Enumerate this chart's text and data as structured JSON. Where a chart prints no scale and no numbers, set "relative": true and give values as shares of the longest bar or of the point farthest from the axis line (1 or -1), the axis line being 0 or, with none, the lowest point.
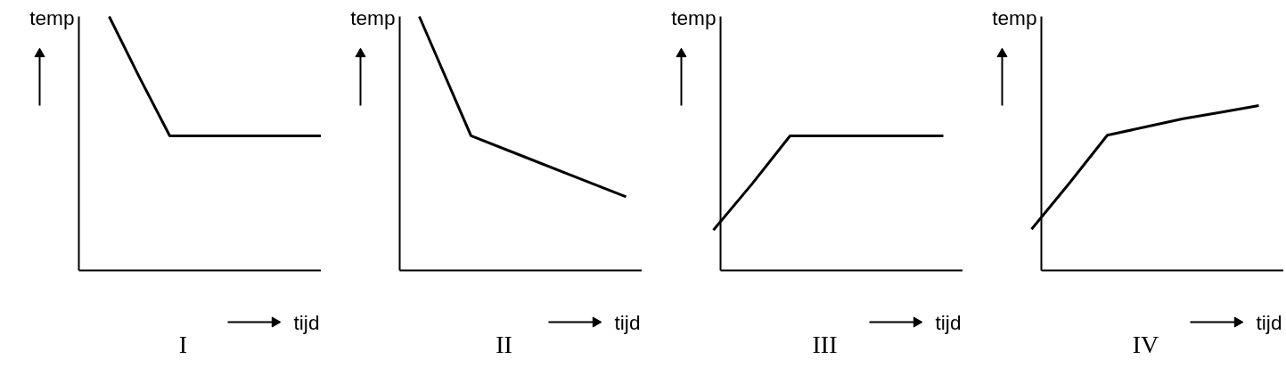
{
  "chart_data": [
    {
      "type": "line",
      "relative": true,
      "title": "I",
      "xlabel": "tijd",
      "ylabel": "temp",
      "color": "#000000",
      "categories": [
        null,
        null,
        null,
        null,
        null,
        null,
        null,
        null
      ],
      "values": [
        1.0,
        0.76,
        0.53,
        0.53,
        0.53,
        0.53,
        0.53,
        0.53
      ]
    },
    {
      "type": "line",
      "relative": true,
      "title": "II",
      "xlabel": "tijd",
      "ylabel": "temp",
      "color": "#000000",
      "categories": [
        null,
        null,
        null,
        null,
        null
      ],
      "values": [
        1.0,
        0.53,
        0.45,
        0.37,
        0.29
      ]
    },
    {
      "type": "line",
      "relative": true,
      "title": "III",
      "xlabel": "tijd",
      "ylabel": "temp",
      "color": "#000000",
      "categories": [
        null,
        null,
        null,
        null,
        null,
        null,
        null
      ],
      "values": [
        0.3,
        0.64,
        1.0,
        1.0,
        1.0,
        1.0,
        1.0
      ]
    },
    {
      "type": "line",
      "relative": true,
      "title": "IV",
      "xlabel": "tijd",
      "ylabel": "temp",
      "color": "#000000",
      "categories": [
        null,
        null,
        null,
        null,
        null,
        null,
        null
      ],
      "values": [
        0.25,
        0.53,
        0.82,
        0.87,
        0.92,
        0.96,
        1.0
      ]
    }
  ]
}
